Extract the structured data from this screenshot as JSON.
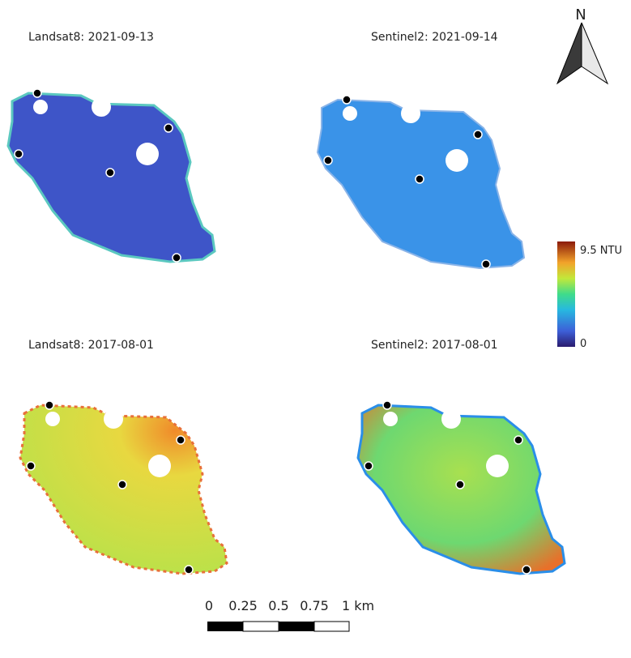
{
  "panels": [
    {
      "title": "Landsat8: 2021-09-13"
    },
    {
      "title": "Sentinel2: 2021-09-14"
    },
    {
      "title": "Landsat8: 2017-08-01"
    },
    {
      "title": "Sentinel2: 2017-08-01"
    }
  ],
  "legend": {
    "max_label": "9.5 NTU",
    "min_label": "0"
  },
  "north_arrow": {
    "label": "N"
  },
  "scale_bar": {
    "labels": [
      "0",
      "0.25",
      "0.5",
      "0.75",
      "1 km"
    ]
  }
}
